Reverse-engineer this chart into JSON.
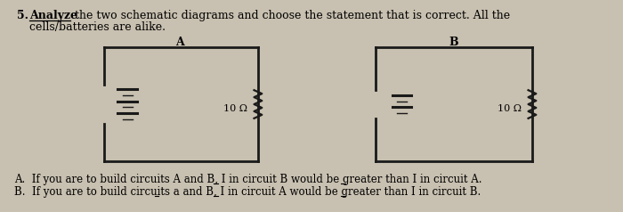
{
  "bg_color": "#c8c0b0",
  "title_number": "5.",
  "title_bold_part": "Analyze",
  "title_rest": " the two schematic diagrams and choose the statement that is correct. All the",
  "title_line2": "cells/batteries are alike.",
  "circuit_A_label": "A",
  "circuit_B_label": "B",
  "resistor_A_label": "10 Ω",
  "resistor_B_label": "10 Ω",
  "answer_A": "A.  If you are to build circuits A and B, I in circuit B would be greater than I in circuit A.",
  "answer_B": "B.  If you are to build circuits a and B, I in circuit A would be greater than I in circuit B.",
  "text_color": "#000000",
  "line_color": "#1a1a1a"
}
